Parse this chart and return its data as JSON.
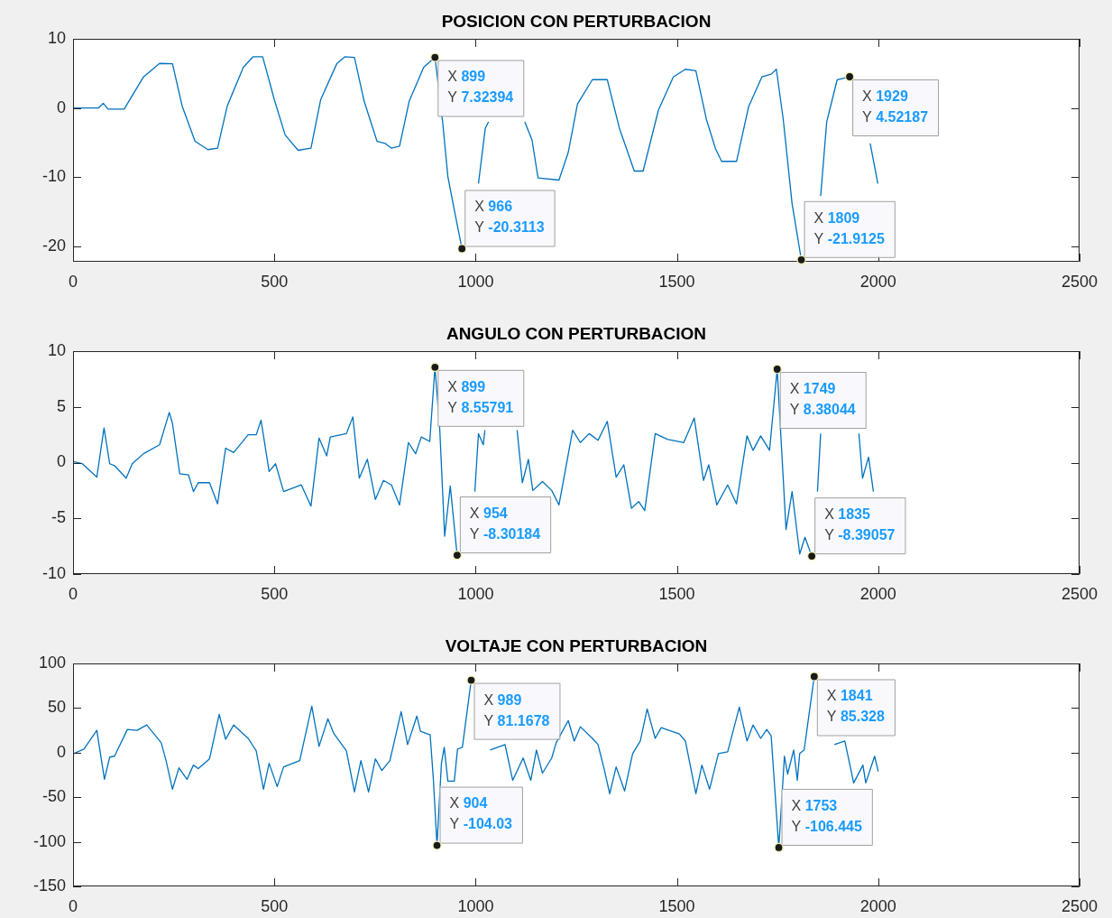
{
  "chart_data": [
    {
      "type": "line",
      "title": "POSICION CON PERTURBACION",
      "color": "#0072bd",
      "xlim": [
        0,
        2500
      ],
      "xticks": [
        0,
        500,
        1000,
        1500,
        2000,
        2500
      ],
      "ylim": [
        -22.2,
        10
      ],
      "yticks": [
        -20,
        -10,
        0,
        10
      ],
      "x": [
        0,
        63,
        75,
        87,
        127,
        175,
        215,
        247,
        271,
        303,
        335,
        359,
        383,
        423,
        447,
        471,
        500,
        527,
        559,
        591,
        615,
        655,
        675,
        699,
        723,
        755,
        775,
        791,
        811,
        835,
        871,
        899,
        918,
        931,
        948,
        966,
        985,
        1007,
        1024,
        1032,
        1075,
        1122,
        1140,
        1155,
        1207,
        1230,
        1253,
        1290,
        1327,
        1357,
        1375,
        1394,
        1416,
        1454,
        1491,
        1521,
        1547,
        1573,
        1596,
        1611,
        1648,
        1678,
        1711,
        1734,
        1747,
        1764,
        1786,
        1809,
        1835,
        1857,
        1872,
        1898,
        1929,
        1955,
        1980,
        1999
      ],
      "values": [
        0,
        0,
        0.7,
        -0.15,
        -0.15,
        4.5,
        6.45,
        6.4,
        0.3,
        -4.8,
        -6.0,
        -5.8,
        0.3,
        5.9,
        7.4,
        7.4,
        1.2,
        -3.9,
        -6.1,
        -5.8,
        1.2,
        6.4,
        7.4,
        7.3,
        1.0,
        -4.8,
        -5.1,
        -5.8,
        -5.5,
        1.0,
        5.9,
        7.32394,
        -2.0,
        -9.9,
        -15.0,
        -20.3113,
        null,
        -10.9,
        -2.9,
        -2.0,
        null,
        -2.0,
        -4.6,
        -10.1,
        -10.4,
        -6.4,
        0.6,
        4.1,
        4.1,
        -2.9,
        -5.9,
        -9.1,
        -9.1,
        -0.3,
        4.5,
        5.6,
        5.4,
        -1.6,
        -5.9,
        -7.7,
        -7.7,
        0.2,
        4.5,
        4.9,
        5.6,
        -1.6,
        -13.8,
        -21.9125,
        null,
        -12.7,
        -2.0,
        4.1,
        4.52187,
        null,
        -5.1,
        -10.9
      ],
      "annotations": [
        {
          "text": "X 899\nY 7.32394",
          "x": 899,
          "y": 7.32394
        },
        {
          "text": "X 966\nY -20.3113",
          "x": 966,
          "y": -20.3113
        },
        {
          "text": "X 1809\nY -21.9125",
          "x": 1809,
          "y": -21.9125
        },
        {
          "text": "X 1929\nY 4.52187",
          "x": 1929,
          "y": 4.52187
        }
      ]
    },
    {
      "type": "line",
      "title": "ANGULO CON PERTURBACION",
      "color": "#0072bd",
      "xlim": [
        0,
        2500
      ],
      "xticks": [
        0,
        500,
        1000,
        1500,
        2000,
        2500
      ],
      "ylim": [
        -10,
        10
      ],
      "yticks": [
        -10,
        -5,
        0,
        5,
        10
      ],
      "x": [
        0,
        23,
        59,
        77,
        91,
        104,
        132,
        147,
        175,
        215,
        239,
        247,
        265,
        287,
        299,
        311,
        339,
        359,
        379,
        399,
        435,
        455,
        467,
        487,
        503,
        523,
        567,
        591,
        611,
        630,
        639,
        679,
        695,
        711,
        731,
        751,
        771,
        791,
        811,
        833,
        851,
        865,
        886,
        899,
        911,
        923,
        937,
        954,
        975,
        998,
        1007,
        1019,
        1023,
        1060,
        1103,
        1116,
        1131,
        1142,
        1166,
        1189,
        1207,
        1241,
        1260,
        1282,
        1304,
        1327,
        1349,
        1368,
        1387,
        1405,
        1420,
        1446,
        1476,
        1517,
        1543,
        1566,
        1579,
        1599,
        1626,
        1648,
        1674,
        1689,
        1708,
        1730,
        1749,
        1771,
        1786,
        1805,
        1818,
        1835,
        1842,
        1849,
        1857,
        1905,
        1952,
        1961,
        1976,
        1988
      ],
      "values": [
        0.1,
        -0.1,
        -1.3,
        3.1,
        -0.1,
        -0.3,
        -1.4,
        -0.1,
        0.8,
        1.6,
        4.5,
        3.5,
        -1.0,
        -1.1,
        -2.6,
        -1.8,
        -1.8,
        -3.7,
        1.3,
        0.9,
        2.5,
        2.5,
        3.8,
        -0.8,
        -0.1,
        -2.6,
        -2.0,
        -3.9,
        2.2,
        0.6,
        2.3,
        2.6,
        4.1,
        -1.4,
        0.3,
        -3.3,
        -1.6,
        -2.0,
        -3.8,
        1.8,
        0.8,
        2.3,
        1.9,
        8.55791,
        2.9,
        -6.6,
        -2.1,
        -8.30184,
        null,
        -2.6,
        2.6,
        1.6,
        2.9,
        null,
        2.9,
        -1.8,
        0.3,
        -2.5,
        -1.7,
        -2.5,
        -3.8,
        2.9,
        1.8,
        2.6,
        2.0,
        3.7,
        -1.3,
        -0.2,
        -4.1,
        -3.5,
        -4.3,
        2.6,
        2.1,
        1.8,
        4.0,
        -1.6,
        -0.2,
        -3.8,
        -2.0,
        -3.7,
        2.4,
        1.1,
        2.4,
        1.1,
        8.38044,
        -6.0,
        -2.6,
        -8.2,
        -6.7,
        -8.39057,
        null,
        -2.6,
        2.6,
        null,
        2.6,
        -1.4,
        0.5,
        -2.6
      ],
      "annotations": [
        {
          "text": "X 899\nY 8.55791",
          "x": 899,
          "y": 8.55791
        },
        {
          "text": "X 954\nY -8.30184",
          "x": 954,
          "y": -8.30184
        },
        {
          "text": "X 1749\nY 8.38044",
          "x": 1749,
          "y": 8.38044
        },
        {
          "text": "X 1835\nY -8.39057",
          "x": 1835,
          "y": -8.39057
        }
      ]
    },
    {
      "type": "line",
      "title": "VOLTAJE CON PERTURBACION",
      "color": "#0072bd",
      "xlim": [
        0,
        2500
      ],
      "xticks": [
        0,
        500,
        1000,
        1500,
        2000,
        2500
      ],
      "ylim": [
        -150,
        100
      ],
      "yticks": [
        -150,
        -100,
        -50,
        0,
        50,
        100
      ],
      "x": [
        0,
        27,
        59,
        78,
        91,
        103,
        135,
        159,
        183,
        219,
        231,
        247,
        263,
        283,
        299,
        311,
        339,
        363,
        379,
        399,
        435,
        455,
        473,
        487,
        507,
        523,
        563,
        593,
        611,
        633,
        647,
        679,
        699,
        715,
        734,
        751,
        767,
        787,
        815,
        831,
        854,
        863,
        887,
        895,
        904,
        915,
        922,
        931,
        947,
        955,
        967,
        989,
        1010,
        1036,
        1073,
        1092,
        1118,
        1137,
        1151,
        1166,
        1189,
        1200,
        1230,
        1245,
        1260,
        1290,
        1304,
        1319,
        1333,
        1349,
        1370,
        1390,
        1409,
        1426,
        1446,
        1461,
        1506,
        1521,
        1547,
        1562,
        1581,
        1603,
        1626,
        1655,
        1674,
        1689,
        1708,
        1723,
        1734,
        1753,
        1767,
        1775,
        1790,
        1799,
        1805,
        1816,
        1841,
        1866,
        1891,
        1917,
        1939,
        1962,
        1969,
        1991,
        2000
      ],
      "values": [
        -1.5,
        4,
        25,
        -30,
        -5,
        -4,
        26,
        25,
        31,
        11,
        -9,
        -41,
        -17,
        -30,
        -14,
        -18,
        -7,
        43,
        15,
        31,
        16,
        2,
        -41,
        -12,
        -38,
        -16,
        -9,
        52,
        7,
        38,
        22,
        2,
        -44,
        -9,
        -44,
        -7,
        -20,
        -9,
        46,
        9,
        41,
        24,
        20,
        -30,
        -104.03,
        -12,
        6,
        -32,
        -32,
        4,
        6,
        81.1678,
        null,
        3,
        9,
        -31,
        -6,
        -31,
        3,
        -23,
        -6,
        11,
        36,
        13,
        29,
        16,
        9,
        -18,
        -46,
        -16,
        -43,
        -1,
        13,
        49,
        16,
        28,
        21,
        13,
        -46,
        -14,
        -41,
        -1,
        1,
        51,
        13,
        31,
        16,
        26,
        19,
        -106.445,
        -4,
        -24,
        3,
        -31,
        -1,
        3,
        85.328,
        null,
        9,
        13,
        -34,
        -14,
        -34,
        -4,
        -21
      ],
      "annotations": [
        {
          "text": "X 989\nY 81.1678",
          "x": 989,
          "y": 81.1678
        },
        {
          "text": "X 904\nY -104.03",
          "x": 904,
          "y": -104.03
        },
        {
          "text": "X 1841\nY 85.328",
          "x": 1841,
          "y": 85.328
        },
        {
          "text": "X 1753\nY -106.445",
          "x": 1753,
          "y": -106.445
        }
      ]
    }
  ]
}
